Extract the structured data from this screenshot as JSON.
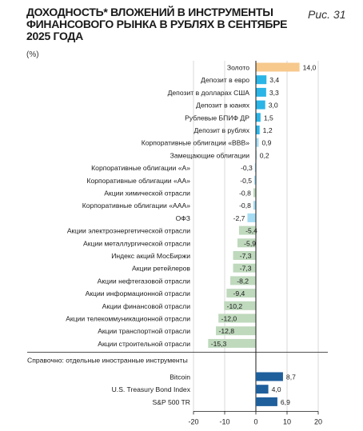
{
  "header": {
    "title": "ДОХОДНОСТЬ* ВЛОЖЕНИЙ В ИНСТРУМЕНТЫ ФИНАНСОВОГО РЫНКА В РУБЛЯХ В СЕНТЯБРЕ 2025 ГОДА",
    "figure_label": "Рис. 31",
    "unit": "(%)"
  },
  "colors": {
    "gold": "#f7c98c",
    "blue": "#2bb4e6",
    "light_blue": "#a6dcf3",
    "green": "#bfd9bd",
    "navy": "#1f5f9c",
    "axis": "#1a1a1a",
    "grid": "#d9d9d9"
  },
  "chart_data": {
    "type": "bar",
    "orientation": "horizontal",
    "title": "ДОХОДНОСТЬ* ВЛОЖЕНИЙ В ИНСТРУМЕНТЫ ФИНАНСОВОГО РЫНКА В РУБЛЯХ В СЕНТЯБРЕ 2025 ГОДА",
    "ylabel": "(%)",
    "xlim": [
      -20,
      20
    ],
    "xticks": [
      -20,
      -10,
      0,
      10,
      20
    ],
    "grid": true,
    "categories": [
      {
        "label": "Золото",
        "value": 14.0,
        "display": "14,0",
        "color": "gold"
      },
      {
        "label": "Депозит в евро",
        "value": 3.4,
        "display": "3,4",
        "color": "blue"
      },
      {
        "label": "Депозит в долларах США",
        "value": 3.3,
        "display": "3,3",
        "color": "blue"
      },
      {
        "label": "Депозит в юанях",
        "value": 3.0,
        "display": "3,0",
        "color": "blue"
      },
      {
        "label": "Рублевые БПИФ ДР",
        "value": 1.5,
        "display": "1,5",
        "color": "blue"
      },
      {
        "label": "Депозит в рублях",
        "value": 1.2,
        "display": "1,2",
        "color": "blue"
      },
      {
        "label": "Корпоративные облигации «BBB»",
        "value": 0.9,
        "display": "0,9",
        "color": "light_blue"
      },
      {
        "label": "Замещающие облигации",
        "value": 0.2,
        "display": "0,2",
        "color": "light_blue"
      },
      {
        "label": "Корпоративные облигации «A»",
        "value": -0.3,
        "display": "-0,3",
        "color": "light_blue"
      },
      {
        "label": "Корпоративные облигации «AA»",
        "value": -0.5,
        "display": "-0,5",
        "color": "light_blue"
      },
      {
        "label": "Акции химической отрасли",
        "value": -0.8,
        "display": "-0,8",
        "color": "green"
      },
      {
        "label": "Корпоративные облигации «AAA»",
        "value": -0.8,
        "display": "-0,8",
        "color": "light_blue"
      },
      {
        "label": "ОФЗ",
        "value": -2.7,
        "display": "-2,7",
        "color": "light_blue"
      },
      {
        "label": "Акции электроэнергетической отрасли",
        "value": -5.4,
        "display": "-5,4",
        "color": "green"
      },
      {
        "label": "Акции металлургической отрасли",
        "value": -5.9,
        "display": "-5,9",
        "color": "green"
      },
      {
        "label": "Индекс акций МосБиржи",
        "value": -7.3,
        "display": "-7,3",
        "color": "green"
      },
      {
        "label": "Акции ретейлеров",
        "value": -7.3,
        "display": "-7,3",
        "color": "green"
      },
      {
        "label": "Акции нефтегазовой отрасли",
        "value": -8.2,
        "display": "-8,2",
        "color": "green"
      },
      {
        "label": "Акции информационной отрасли",
        "value": -9.4,
        "display": "-9,4",
        "color": "green"
      },
      {
        "label": "Акции финансовой отрасли",
        "value": -10.2,
        "display": "-10,2",
        "color": "green"
      },
      {
        "label": "Акции телекоммуникационной отрасли",
        "value": -12.0,
        "display": "-12,0",
        "color": "green"
      },
      {
        "label": "Акции транспортной отрасли",
        "value": -12.8,
        "display": "-12,8",
        "color": "green"
      },
      {
        "label": "Акции строительной отрасли",
        "value": -15.3,
        "display": "-15,3",
        "color": "green"
      }
    ],
    "reference_section": {
      "label": "Справочно: отдельные иностранные инструменты",
      "categories": [
        {
          "label": "Bitcoin",
          "value": 8.7,
          "display": "8,7",
          "color": "navy"
        },
        {
          "label": "U.S. Treasury Bond Index",
          "value": 4.0,
          "display": "4,0",
          "color": "navy"
        },
        {
          "label": "S&P 500 TR",
          "value": 6.9,
          "display": "6,9",
          "color": "navy"
        }
      ]
    }
  }
}
